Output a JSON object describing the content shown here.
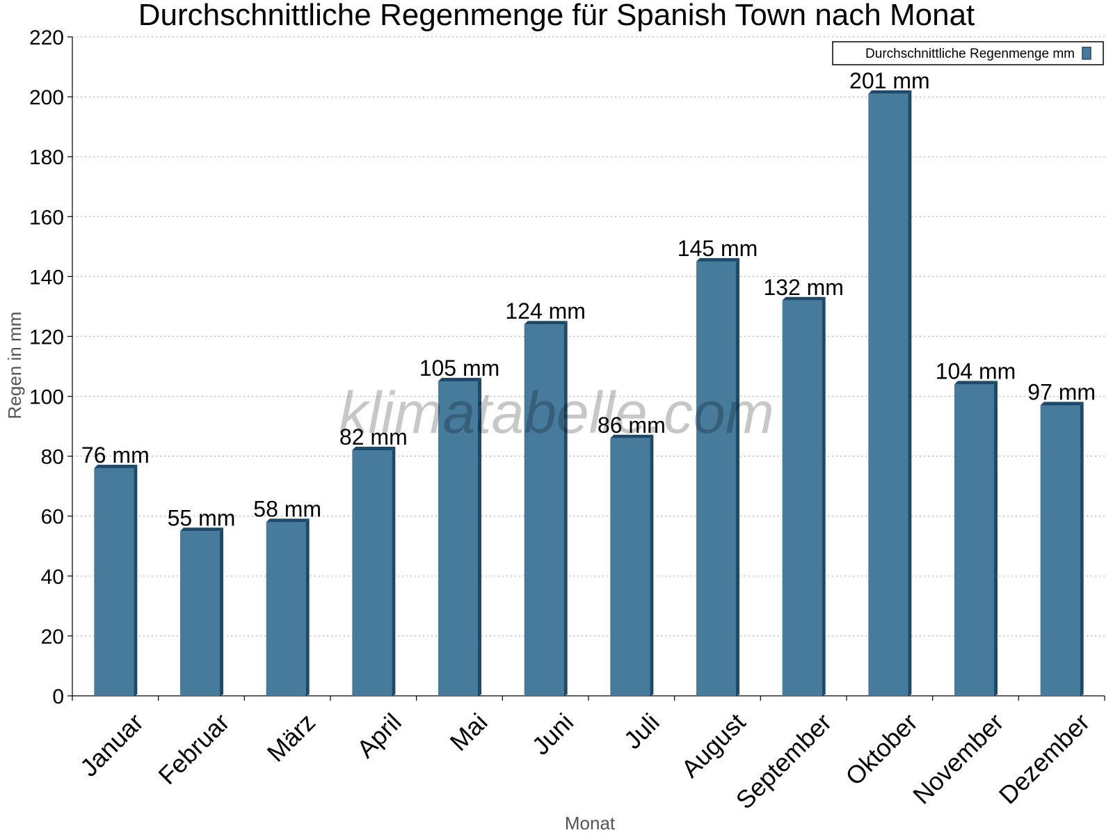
{
  "chart_data": {
    "type": "bar",
    "title": "Durchschnittliche Regenmenge für Spanish Town nach Monat",
    "xlabel": "Monat",
    "ylabel": "Regen in mm",
    "ylim": [
      0,
      220
    ],
    "yticks": [
      0,
      20,
      40,
      60,
      80,
      100,
      120,
      140,
      160,
      180,
      200,
      220
    ],
    "categories": [
      "Januar",
      "Februar",
      "März",
      "April",
      "Mai",
      "Juni",
      "Juli",
      "August",
      "September",
      "Oktober",
      "November",
      "Dezember"
    ],
    "series": [
      {
        "name": "Durchschnittliche Regenmenge mm",
        "color": "#467b9c",
        "values": [
          76,
          55,
          58,
          82,
          105,
          124,
          86,
          145,
          132,
          201,
          104,
          97
        ],
        "labels": [
          "76 mm",
          "55 mm",
          "58 mm",
          "82 mm",
          "105 mm",
          "124 mm",
          "86 mm",
          "145 mm",
          "132 mm",
          "201 mm",
          "104 mm",
          "97 mm"
        ]
      }
    ],
    "grid": true,
    "legend_position": "top-right"
  },
  "watermark": "klimatabelle.com"
}
